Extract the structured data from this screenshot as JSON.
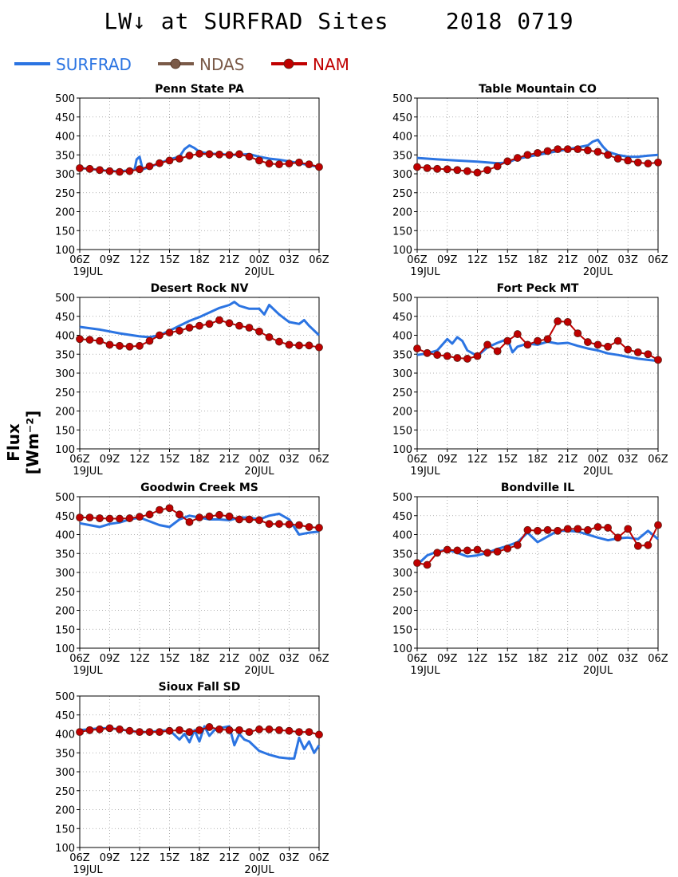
{
  "title": "LW↓ at SURFRAD Sites    2018 0719",
  "ylabel": "Flux [Wm⁻²]",
  "legend": [
    {
      "label": "SURFRAD",
      "color": "#2b74e2",
      "marker": false
    },
    {
      "label": "NDAS",
      "color": "#7a5a48",
      "marker": true
    },
    {
      "label": "NAM",
      "color": "#c00000",
      "marker": true
    }
  ],
  "chart_data": [
    {
      "type": "line",
      "title": "Penn State PA",
      "ylim": [
        100,
        500
      ],
      "yticks": [
        100,
        150,
        200,
        250,
        300,
        350,
        400,
        450,
        500
      ],
      "xlim": [
        0,
        24
      ],
      "xticks": [
        "06Z",
        "09Z",
        "12Z",
        "15Z",
        "18Z",
        "21Z",
        "00Z",
        "03Z",
        "06Z"
      ],
      "xdates": [
        "19JUL",
        "",
        "",
        "",
        "",
        "",
        "20JUL",
        "",
        ""
      ],
      "grid": true,
      "series": [
        {
          "name": "SURFRAD",
          "color": "#2b74e2",
          "x": [
            0,
            1,
            2,
            3,
            4,
            5,
            5.5,
            5.7,
            6,
            6.3,
            7,
            8,
            9,
            10,
            10.5,
            11,
            11.5,
            12,
            13,
            14,
            15,
            16,
            17,
            18,
            19,
            20,
            21,
            22,
            23,
            24
          ],
          "y": [
            315,
            313,
            310,
            308,
            306,
            310,
            312,
            338,
            345,
            312,
            318,
            328,
            338,
            345,
            365,
            375,
            368,
            358,
            353,
            352,
            350,
            350,
            352,
            345,
            340,
            337,
            333,
            328,
            323,
            318
          ]
        },
        {
          "name": "NAM",
          "color": "#c00000",
          "marker": true,
          "x": [
            0,
            1,
            2,
            3,
            4,
            5,
            6,
            7,
            8,
            9,
            10,
            11,
            12,
            13,
            14,
            15,
            16,
            17,
            18,
            19,
            20,
            21,
            22,
            23,
            24
          ],
          "y": [
            315,
            313,
            310,
            307,
            305,
            307,
            312,
            320,
            328,
            335,
            340,
            348,
            353,
            352,
            351,
            350,
            352,
            345,
            335,
            327,
            325,
            327,
            330,
            325,
            318
          ]
        }
      ]
    },
    {
      "type": "line",
      "title": "Table Mountain CO",
      "ylim": [
        100,
        500
      ],
      "yticks": [
        100,
        150,
        200,
        250,
        300,
        350,
        400,
        450,
        500
      ],
      "xlim": [
        0,
        24
      ],
      "xticks": [
        "06Z",
        "09Z",
        "12Z",
        "15Z",
        "18Z",
        "21Z",
        "00Z",
        "03Z",
        "06Z"
      ],
      "xdates": [
        "19JUL",
        "",
        "",
        "",
        "",
        "",
        "20JUL",
        "",
        ""
      ],
      "grid": true,
      "series": [
        {
          "name": "SURFRAD",
          "color": "#2b74e2",
          "x": [
            0,
            2,
            4,
            6,
            8,
            9,
            10,
            11,
            12,
            13,
            14,
            15,
            16,
            17,
            17.5,
            18,
            18.5,
            19,
            20,
            21,
            22,
            23,
            24
          ],
          "y": [
            342,
            338,
            335,
            332,
            328,
            330,
            340,
            345,
            350,
            355,
            360,
            365,
            370,
            375,
            385,
            390,
            372,
            358,
            350,
            345,
            345,
            348,
            350
          ]
        },
        {
          "name": "NAM",
          "color": "#c00000",
          "marker": true,
          "x": [
            0,
            1,
            2,
            3,
            4,
            5,
            6,
            7,
            8,
            9,
            10,
            11,
            12,
            13,
            14,
            15,
            16,
            17,
            18,
            19,
            20,
            21,
            22,
            23,
            24
          ],
          "y": [
            318,
            315,
            313,
            312,
            310,
            307,
            303,
            310,
            320,
            333,
            342,
            350,
            355,
            360,
            365,
            365,
            365,
            362,
            358,
            350,
            340,
            335,
            330,
            327,
            330
          ]
        }
      ]
    },
    {
      "type": "line",
      "title": "Desert Rock NV",
      "ylim": [
        100,
        500
      ],
      "yticks": [
        100,
        150,
        200,
        250,
        300,
        350,
        400,
        450,
        500
      ],
      "xlim": [
        0,
        24
      ],
      "xticks": [
        "06Z",
        "09Z",
        "12Z",
        "15Z",
        "18Z",
        "21Z",
        "00Z",
        "03Z",
        "06Z"
      ],
      "xdates": [
        "19JUL",
        "",
        "",
        "",
        "",
        "",
        "20JUL",
        "",
        ""
      ],
      "grid": true,
      "series": [
        {
          "name": "SURFRAD",
          "color": "#2b74e2",
          "x": [
            0,
            2,
            4,
            6,
            7,
            8,
            9,
            10,
            11,
            12,
            13,
            14,
            15,
            15.5,
            16,
            17,
            18,
            18.5,
            19,
            20,
            21,
            22,
            22.5,
            23,
            24
          ],
          "y": [
            422,
            415,
            405,
            397,
            395,
            400,
            412,
            425,
            438,
            448,
            460,
            472,
            480,
            488,
            478,
            470,
            470,
            455,
            480,
            455,
            435,
            430,
            440,
            425,
            400
          ]
        },
        {
          "name": "NAM",
          "color": "#c00000",
          "marker": true,
          "x": [
            0,
            1,
            2,
            3,
            4,
            5,
            6,
            7,
            8,
            9,
            10,
            11,
            12,
            13,
            14,
            15,
            16,
            17,
            18,
            19,
            20,
            21,
            22,
            23,
            24
          ],
          "y": [
            390,
            388,
            385,
            375,
            372,
            370,
            372,
            385,
            400,
            407,
            412,
            420,
            425,
            430,
            440,
            432,
            425,
            420,
            410,
            395,
            383,
            375,
            373,
            373,
            368
          ]
        }
      ]
    },
    {
      "type": "line",
      "title": "Fort Peck MT",
      "ylim": [
        100,
        500
      ],
      "yticks": [
        100,
        150,
        200,
        250,
        300,
        350,
        400,
        450,
        500
      ],
      "xlim": [
        0,
        24
      ],
      "xticks": [
        "06Z",
        "09Z",
        "12Z",
        "15Z",
        "18Z",
        "21Z",
        "00Z",
        "03Z",
        "06Z"
      ],
      "xdates": [
        "19JUL",
        "",
        "",
        "",
        "",
        "",
        "20JUL",
        "",
        ""
      ],
      "grid": true,
      "series": [
        {
          "name": "SURFRAD",
          "color": "#2b74e2",
          "x": [
            0,
            1,
            2,
            3,
            3.5,
            4,
            4.5,
            5,
            6,
            7,
            8,
            9,
            9.5,
            10,
            11,
            12,
            13,
            14,
            15,
            16,
            17,
            18,
            19,
            20,
            21,
            22,
            23,
            24
          ],
          "y": [
            348,
            352,
            360,
            390,
            378,
            395,
            385,
            360,
            345,
            368,
            380,
            390,
            355,
            370,
            378,
            375,
            383,
            378,
            380,
            372,
            365,
            360,
            352,
            348,
            343,
            338,
            335,
            332
          ]
        },
        {
          "name": "NAM",
          "color": "#c00000",
          "marker": true,
          "x": [
            0,
            1,
            2,
            3,
            4,
            5,
            6,
            7,
            8,
            9,
            10,
            11,
            12,
            13,
            14,
            15,
            16,
            17,
            18,
            19,
            20,
            21,
            22,
            23,
            24
          ],
          "y": [
            365,
            353,
            348,
            345,
            340,
            338,
            345,
            375,
            358,
            385,
            403,
            375,
            385,
            390,
            437,
            435,
            405,
            382,
            375,
            370,
            385,
            362,
            355,
            350,
            335
          ]
        }
      ]
    },
    {
      "type": "line",
      "title": "Goodwin Creek MS",
      "ylim": [
        100,
        500
      ],
      "yticks": [
        100,
        150,
        200,
        250,
        300,
        350,
        400,
        450,
        500
      ],
      "xlim": [
        0,
        24
      ],
      "xticks": [
        "06Z",
        "09Z",
        "12Z",
        "15Z",
        "18Z",
        "21Z",
        "00Z",
        "03Z",
        "06Z"
      ],
      "xdates": [
        "19JUL",
        "",
        "",
        "",
        "",
        "",
        "20JUL",
        "",
        ""
      ],
      "grid": true,
      "series": [
        {
          "name": "SURFRAD",
          "color": "#2b74e2",
          "x": [
            0,
            1,
            2,
            3,
            4,
            5,
            6,
            7,
            8,
            9,
            10,
            11,
            12,
            13,
            14,
            15,
            16,
            17,
            18,
            19,
            20,
            21,
            22,
            23,
            24
          ],
          "y": [
            430,
            425,
            420,
            428,
            432,
            440,
            445,
            435,
            425,
            420,
            440,
            450,
            445,
            440,
            440,
            438,
            445,
            445,
            440,
            450,
            455,
            440,
            400,
            405,
            408
          ]
        },
        {
          "name": "NAM",
          "color": "#c00000",
          "marker": true,
          "x": [
            0,
            1,
            2,
            3,
            4,
            5,
            6,
            7,
            8,
            9,
            10,
            11,
            12,
            13,
            14,
            15,
            16,
            17,
            18,
            19,
            20,
            21,
            22,
            23,
            24
          ],
          "y": [
            445,
            445,
            443,
            442,
            442,
            443,
            447,
            453,
            465,
            470,
            453,
            433,
            445,
            448,
            452,
            448,
            440,
            440,
            438,
            428,
            428,
            427,
            425,
            420,
            418
          ]
        }
      ]
    },
    {
      "type": "line",
      "title": "Bondville IL",
      "ylim": [
        100,
        500
      ],
      "yticks": [
        100,
        150,
        200,
        250,
        300,
        350,
        400,
        450,
        500
      ],
      "xlim": [
        0,
        24
      ],
      "xticks": [
        "06Z",
        "09Z",
        "12Z",
        "15Z",
        "18Z",
        "21Z",
        "00Z",
        "03Z",
        "06Z"
      ],
      "xdates": [
        "19JUL",
        "",
        "",
        "",
        "",
        "",
        "20JUL",
        "",
        ""
      ],
      "grid": true,
      "series": [
        {
          "name": "SURFRAD",
          "color": "#2b74e2",
          "x": [
            0,
            1,
            2,
            3,
            4,
            5,
            6,
            7,
            8,
            9,
            10,
            11,
            12,
            13,
            14,
            15,
            16,
            17,
            18,
            19,
            20,
            21,
            22,
            23,
            24
          ],
          "y": [
            320,
            345,
            355,
            360,
            352,
            342,
            345,
            352,
            362,
            370,
            380,
            405,
            380,
            395,
            410,
            410,
            408,
            400,
            392,
            385,
            390,
            392,
            388,
            410,
            388
          ]
        },
        {
          "name": "NAM",
          "color": "#c00000",
          "marker": true,
          "x": [
            0,
            1,
            2,
            3,
            4,
            5,
            6,
            7,
            8,
            9,
            10,
            11,
            12,
            13,
            14,
            15,
            16,
            17,
            18,
            19,
            20,
            21,
            22,
            23,
            24
          ],
          "y": [
            325,
            320,
            352,
            360,
            358,
            358,
            360,
            352,
            355,
            363,
            372,
            412,
            410,
            412,
            410,
            415,
            415,
            412,
            420,
            418,
            392,
            415,
            370,
            372,
            425
          ]
        }
      ]
    },
    {
      "type": "line",
      "title": "Sioux Fall SD",
      "ylim": [
        100,
        500
      ],
      "yticks": [
        100,
        150,
        200,
        250,
        300,
        350,
        400,
        450,
        500
      ],
      "xlim": [
        0,
        24
      ],
      "xticks": [
        "06Z",
        "09Z",
        "12Z",
        "15Z",
        "18Z",
        "21Z",
        "00Z",
        "03Z",
        "06Z"
      ],
      "xdates": [
        "19JUL",
        "",
        "",
        "",
        "",
        "",
        "20JUL",
        "",
        ""
      ],
      "grid": true,
      "series": [
        {
          "name": "SURFRAD",
          "color": "#2b74e2",
          "x": [
            0,
            1,
            2,
            3,
            4,
            5,
            6,
            7,
            8,
            9,
            10,
            10.5,
            11,
            11.5,
            12,
            12.5,
            13,
            13.5,
            14,
            15,
            15.5,
            16,
            16.5,
            17,
            18,
            19,
            20,
            21,
            21.5,
            22,
            22.5,
            23,
            23.5,
            24
          ],
          "y": [
            410,
            412,
            415,
            415,
            412,
            408,
            405,
            405,
            408,
            410,
            385,
            400,
            378,
            410,
            380,
            420,
            395,
            410,
            415,
            420,
            370,
            400,
            385,
            380,
            355,
            345,
            338,
            335,
            335,
            390,
            360,
            380,
            350,
            370
          ]
        },
        {
          "name": "NAM",
          "color": "#c00000",
          "marker": true,
          "x": [
            0,
            1,
            2,
            3,
            4,
            5,
            6,
            7,
            8,
            9,
            10,
            11,
            12,
            13,
            14,
            15,
            16,
            17,
            18,
            19,
            20,
            21,
            22,
            23,
            24
          ],
          "y": [
            405,
            410,
            412,
            415,
            412,
            408,
            405,
            405,
            405,
            408,
            410,
            405,
            410,
            418,
            412,
            410,
            410,
            405,
            412,
            412,
            410,
            408,
            405,
            405,
            398
          ]
        }
      ]
    }
  ]
}
